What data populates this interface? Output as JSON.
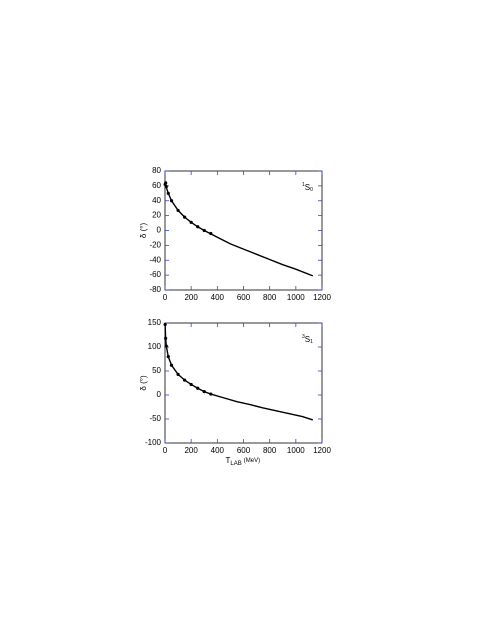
{
  "chart_data": [
    {
      "type": "line",
      "ylabel": "δ (°)",
      "annotation": {
        "sup": "1",
        "main": "S",
        "sub": "0"
      },
      "xlim": [
        0,
        1200
      ],
      "xticks": [
        0,
        200,
        400,
        600,
        800,
        1000,
        1200
      ],
      "ylim": [
        -80,
        80
      ],
      "yticks": [
        -80,
        -60,
        -40,
        -20,
        0,
        20,
        40,
        60,
        80
      ],
      "series": [
        {
          "style": "line",
          "color": "#000000",
          "x": [
            1,
            5,
            10,
            25,
            50,
            100,
            150,
            200,
            250,
            300,
            400,
            500,
            600,
            700,
            800,
            900,
            1000,
            1130
          ],
          "values": [
            62,
            62,
            58,
            50,
            40,
            27,
            18,
            11,
            5,
            0,
            -9,
            -18,
            -25,
            -32,
            -39,
            -46,
            -52,
            -61
          ]
        },
        {
          "style": "markers",
          "color": "#000000",
          "x": [
            1,
            5,
            10,
            25,
            50,
            100,
            150,
            200,
            250,
            300,
            350
          ],
          "values": [
            62,
            64,
            59,
            50,
            40,
            27,
            18,
            11,
            5,
            0,
            -4
          ]
        }
      ]
    },
    {
      "type": "line",
      "ylabel": "δ (°)",
      "annotation": {
        "sup": "3",
        "main": "S",
        "sub": "1"
      },
      "xlabel": {
        "main": "T",
        "sub": "LAB",
        "unit": "(MeV)"
      },
      "xlim": [
        0,
        1200
      ],
      "xticks": [
        0,
        200,
        400,
        600,
        800,
        1000,
        1200
      ],
      "ylim": [
        -100,
        150
      ],
      "yticks": [
        -100,
        -50,
        0,
        50,
        100,
        150
      ],
      "series": [
        {
          "style": "line",
          "color": "#000000",
          "x": [
            1,
            5,
            10,
            25,
            50,
            100,
            150,
            200,
            250,
            300,
            350,
            450,
            550,
            650,
            750,
            850,
            950,
            1050,
            1130
          ],
          "values": [
            147,
            118,
            102,
            80,
            62,
            43,
            31,
            22,
            14,
            7,
            2,
            -6,
            -14,
            -20,
            -27,
            -33,
            -39,
            -45,
            -52
          ]
        },
        {
          "style": "markers",
          "color": "#000000",
          "x": [
            1,
            5,
            10,
            25,
            50,
            100,
            150,
            200,
            250,
            300,
            350
          ],
          "values": [
            147,
            118,
            102,
            80,
            62,
            43,
            31,
            22,
            14,
            7,
            2
          ]
        }
      ]
    }
  ]
}
